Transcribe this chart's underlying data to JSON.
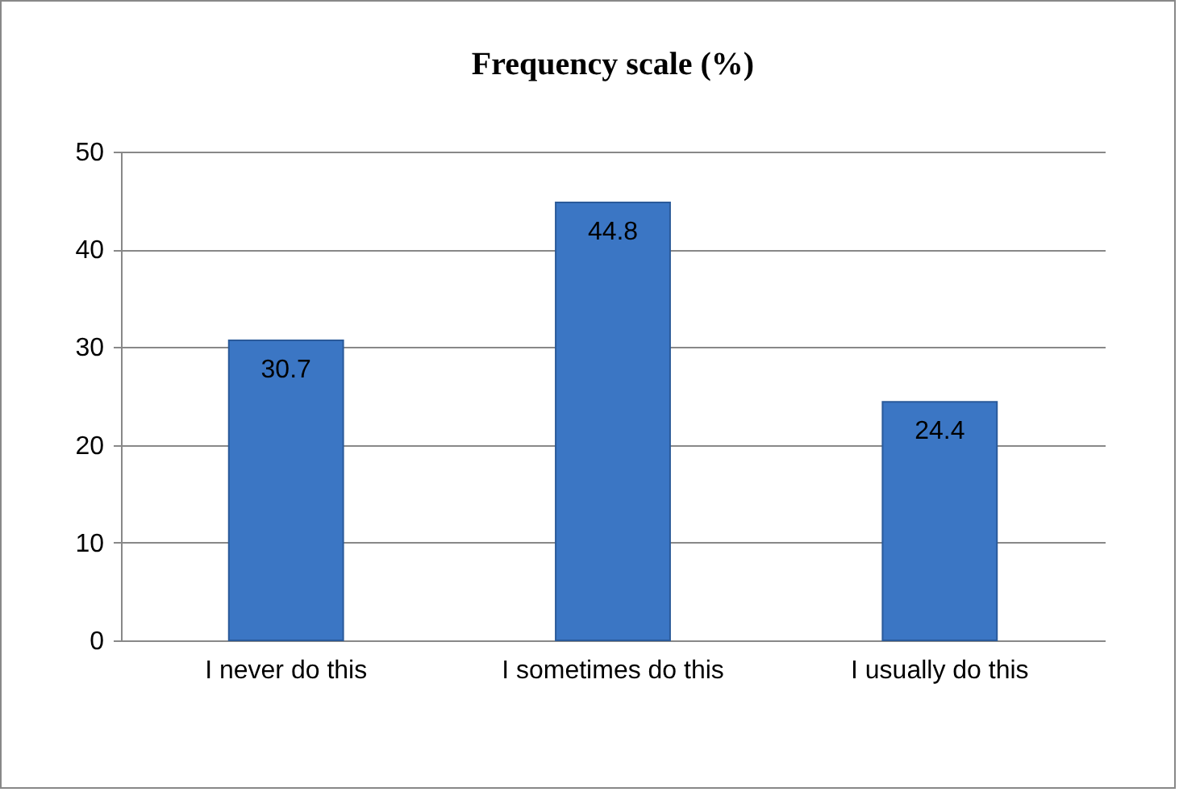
{
  "chart_data": {
    "type": "bar",
    "title": "Frequency scale (%)",
    "categories": [
      "I never do this",
      "I sometimes do this",
      "I usually do this"
    ],
    "values": [
      30.7,
      44.8,
      24.4
    ],
    "color": "#3b76c4",
    "ylim": [
      0,
      50
    ],
    "yticks": [
      0,
      10,
      20,
      30,
      40,
      50
    ],
    "grid": "y",
    "data_labels": true
  }
}
